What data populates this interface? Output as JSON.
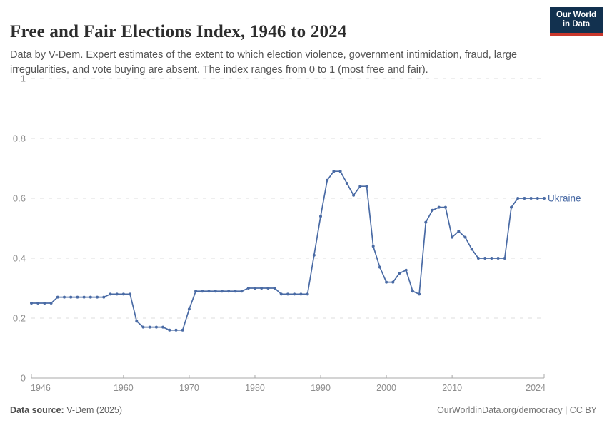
{
  "header": {
    "title": "Free and Fair Elections Index, 1946 to 2024",
    "subtitle": "Data by V-Dem. Expert estimates of the extent to which election violence, government intimidation, fraud, large irregularities, and vote buying are absent. The index ranges from 0 to 1 (most free and fair).",
    "logo": {
      "line1": "Our World",
      "line2": "in Data"
    }
  },
  "chart_data": {
    "type": "line",
    "title": "Free and Fair Elections Index, 1946 to 2024",
    "xlabel": "",
    "ylabel": "",
    "xlim": [
      1946,
      2024
    ],
    "ylim": [
      0,
      1
    ],
    "x_ticks": [
      1946,
      1960,
      1970,
      1980,
      1990,
      2000,
      2010,
      2024
    ],
    "y_ticks": [
      0,
      0.2,
      0.4,
      0.6,
      0.8,
      1
    ],
    "grid": "horizontal-dashed",
    "legend": "line-end-label",
    "marker": "dot",
    "series": [
      {
        "name": "Ukraine",
        "color": "#4a6ba5",
        "x": [
          1946,
          1947,
          1948,
          1949,
          1950,
          1951,
          1952,
          1953,
          1954,
          1955,
          1956,
          1957,
          1958,
          1959,
          1960,
          1961,
          1962,
          1963,
          1964,
          1965,
          1966,
          1967,
          1968,
          1969,
          1970,
          1971,
          1972,
          1973,
          1974,
          1975,
          1976,
          1977,
          1978,
          1979,
          1980,
          1981,
          1982,
          1983,
          1984,
          1985,
          1986,
          1987,
          1988,
          1989,
          1990,
          1991,
          1992,
          1993,
          1994,
          1995,
          1996,
          1997,
          1998,
          1999,
          2000,
          2001,
          2002,
          2003,
          2004,
          2005,
          2006,
          2007,
          2008,
          2009,
          2010,
          2011,
          2012,
          2013,
          2014,
          2015,
          2016,
          2017,
          2018,
          2019,
          2020,
          2021,
          2022,
          2023,
          2024
        ],
        "values": [
          0.25,
          0.25,
          0.25,
          0.25,
          0.27,
          0.27,
          0.27,
          0.27,
          0.27,
          0.27,
          0.27,
          0.27,
          0.28,
          0.28,
          0.28,
          0.28,
          0.19,
          0.17,
          0.17,
          0.17,
          0.17,
          0.16,
          0.16,
          0.16,
          0.23,
          0.29,
          0.29,
          0.29,
          0.29,
          0.29,
          0.29,
          0.29,
          0.29,
          0.3,
          0.3,
          0.3,
          0.3,
          0.3,
          0.28,
          0.28,
          0.28,
          0.28,
          0.28,
          0.41,
          0.54,
          0.66,
          0.69,
          0.69,
          0.65,
          0.61,
          0.64,
          0.64,
          0.44,
          0.37,
          0.32,
          0.32,
          0.35,
          0.36,
          0.29,
          0.28,
          0.52,
          0.56,
          0.57,
          0.57,
          0.47,
          0.49,
          0.47,
          0.43,
          0.4,
          0.4,
          0.4,
          0.4,
          0.4,
          0.57,
          0.6,
          0.6,
          0.6,
          0.6,
          0.6
        ]
      }
    ]
  },
  "footer": {
    "source_label": "Data source:",
    "source_value": "V-Dem (2025)",
    "right_text": "OurWorldinData.org/democracy | CC BY"
  },
  "colors": {
    "line": "#4a6ba5",
    "logo_bg": "#12314f",
    "logo_red": "#c9372c",
    "gridline": "#dedede",
    "axis": "#a8a8a8",
    "tick_label": "#8c8c8c"
  }
}
